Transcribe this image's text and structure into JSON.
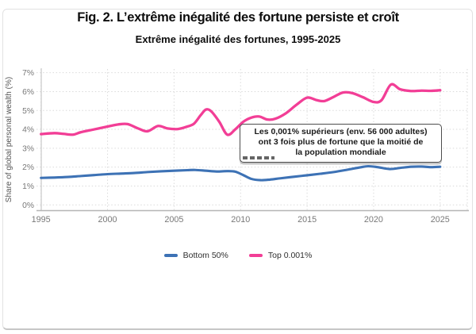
{
  "figure": {
    "title": "Fig. 2. L’extrême inégalité des fortune persiste et croît",
    "subtitle": "Extrême inégalité des fortunes, 1995-2025"
  },
  "annotation": {
    "line1": "Les 0,001% supérieurs (env. 56 000 adultes)",
    "line2": "ont 3 fois plus de fortune que la moitié de",
    "line3": "la population mondiale"
  },
  "chart_data": {
    "type": "line",
    "title": "Extrême inégalité des fortunes, 1995-2025",
    "xlabel": "",
    "ylabel": "Share of global personal wealth (%)",
    "xlim": [
      1995,
      2025
    ],
    "ylim": [
      0,
      7
    ],
    "xticks": [
      "1995",
      "2000",
      "2005",
      "2010",
      "2015",
      "2020",
      "2025"
    ],
    "yticks": [
      "0%",
      "1%",
      "2%",
      "3%",
      "4%",
      "5%",
      "6%",
      "7%"
    ],
    "grid": "dotted",
    "legend_position": "bottom-center",
    "series": [
      {
        "name": "Bottom 50%",
        "color": "#3d72b5",
        "points": [
          [
            1995,
            1.43
          ],
          [
            1996,
            1.45
          ],
          [
            1997,
            1.48
          ],
          [
            1998,
            1.53
          ],
          [
            1999,
            1.58
          ],
          [
            2000,
            1.63
          ],
          [
            2001,
            1.66
          ],
          [
            2002,
            1.69
          ],
          [
            2003,
            1.74
          ],
          [
            2004,
            1.78
          ],
          [
            2005,
            1.81
          ],
          [
            2006,
            1.84
          ],
          [
            2006.6,
            1.85
          ],
          [
            2007.4,
            1.81
          ],
          [
            2008.2,
            1.77
          ],
          [
            2009,
            1.79
          ],
          [
            2009.6,
            1.76
          ],
          [
            2010.2,
            1.58
          ],
          [
            2010.8,
            1.38
          ],
          [
            2011.5,
            1.31
          ],
          [
            2012.2,
            1.34
          ],
          [
            2013,
            1.41
          ],
          [
            2014,
            1.49
          ],
          [
            2015,
            1.57
          ],
          [
            2016,
            1.65
          ],
          [
            2017,
            1.74
          ],
          [
            2018,
            1.86
          ],
          [
            2019,
            1.99
          ],
          [
            2019.6,
            2.05
          ],
          [
            2020.3,
            2.0
          ],
          [
            2021.2,
            1.9
          ],
          [
            2022,
            1.96
          ],
          [
            2022.8,
            2.02
          ],
          [
            2023.6,
            2.03
          ],
          [
            2024.3,
            2.0
          ],
          [
            2025,
            2.02
          ]
        ]
      },
      {
        "name": "Top 0.001%",
        "color": "#f23e96",
        "points": [
          [
            1995,
            3.75
          ],
          [
            1996,
            3.8
          ],
          [
            1996.7,
            3.76
          ],
          [
            1997.4,
            3.72
          ],
          [
            1998,
            3.85
          ],
          [
            1999,
            4.0
          ],
          [
            2000,
            4.15
          ],
          [
            2000.8,
            4.26
          ],
          [
            2001.5,
            4.28
          ],
          [
            2002.3,
            4.05
          ],
          [
            2003,
            3.9
          ],
          [
            2003.8,
            4.18
          ],
          [
            2004.5,
            4.05
          ],
          [
            2005.3,
            4.02
          ],
          [
            2006,
            4.15
          ],
          [
            2006.5,
            4.3
          ],
          [
            2007,
            4.75
          ],
          [
            2007.4,
            5.05
          ],
          [
            2007.8,
            4.95
          ],
          [
            2008.4,
            4.4
          ],
          [
            2009,
            3.72
          ],
          [
            2009.6,
            4.0
          ],
          [
            2010.2,
            4.4
          ],
          [
            2010.8,
            4.62
          ],
          [
            2011.4,
            4.68
          ],
          [
            2012,
            4.52
          ],
          [
            2012.6,
            4.56
          ],
          [
            2013.4,
            4.85
          ],
          [
            2014.2,
            5.3
          ],
          [
            2015,
            5.68
          ],
          [
            2015.7,
            5.55
          ],
          [
            2016.3,
            5.5
          ],
          [
            2017,
            5.72
          ],
          [
            2017.7,
            5.95
          ],
          [
            2018.4,
            5.92
          ],
          [
            2019.2,
            5.7
          ],
          [
            2020,
            5.45
          ],
          [
            2020.6,
            5.55
          ],
          [
            2021.3,
            6.37
          ],
          [
            2022,
            6.12
          ],
          [
            2022.8,
            6.03
          ],
          [
            2023.6,
            6.05
          ],
          [
            2024.3,
            6.04
          ],
          [
            2025,
            6.07
          ]
        ]
      }
    ]
  }
}
